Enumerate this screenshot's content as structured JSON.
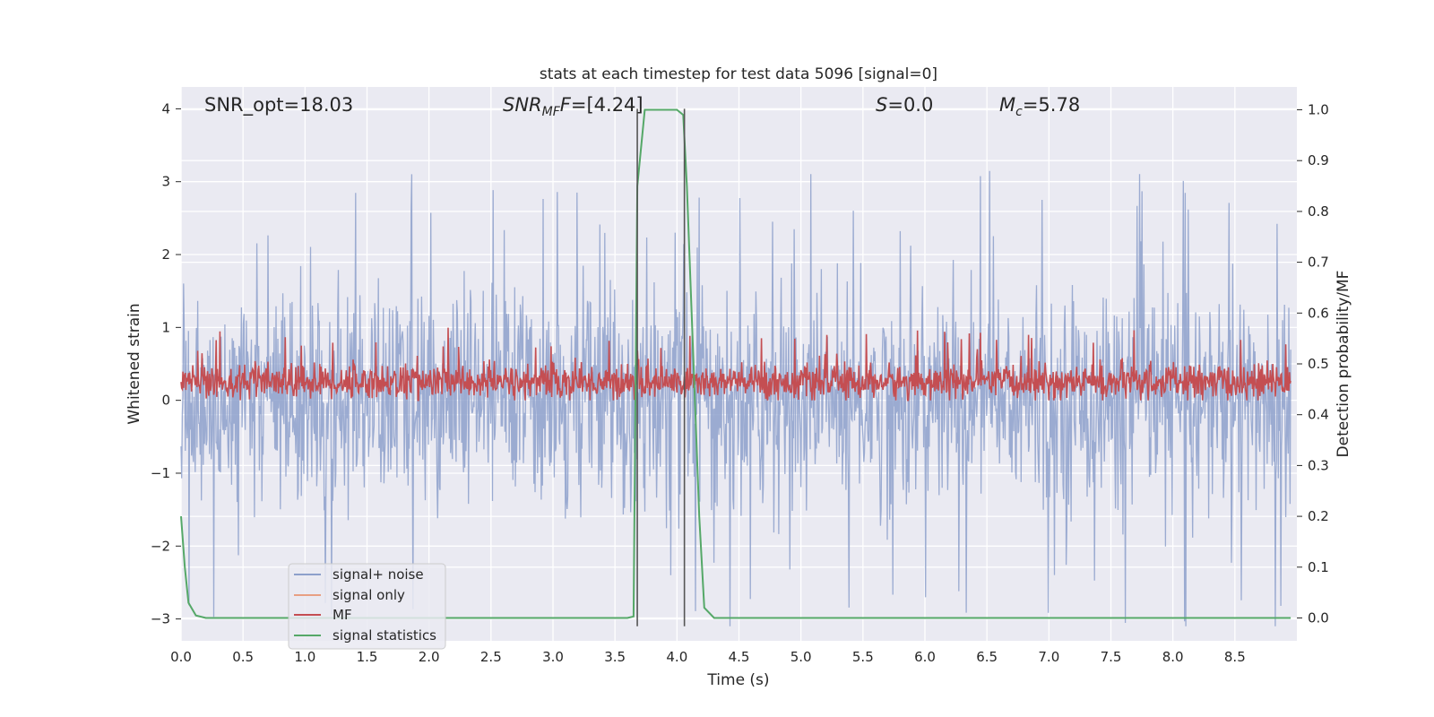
{
  "chart_data": {
    "type": "line",
    "title": "stats at each timestep for test data 5096 [signal=0]",
    "xlabel": "Time (s)",
    "ylabel": "Whitened strain",
    "y2label": "Detection probability/MF",
    "xlim": [
      0,
      9.0
    ],
    "ylim": [
      -3.3,
      4.3
    ],
    "y2lim": [
      -0.045,
      1.045
    ],
    "xticks": [
      "0.0",
      "0.5",
      "1.0",
      "1.5",
      "2.0",
      "2.5",
      "3.0",
      "3.5",
      "4.0",
      "4.5",
      "5.0",
      "5.5",
      "6.0",
      "6.5",
      "7.0",
      "7.5",
      "8.0",
      "8.5"
    ],
    "xtick_values": [
      0,
      0.5,
      1,
      1.5,
      2,
      2.5,
      3,
      3.5,
      4,
      4.5,
      5,
      5.5,
      6,
      6.5,
      7,
      7.5,
      8,
      8.5
    ],
    "yticks": [
      "−3",
      "−2",
      "−1",
      "0",
      "1",
      "2",
      "3",
      "4"
    ],
    "ytick_values": [
      -3,
      -2,
      -1,
      0,
      1,
      2,
      3,
      4
    ],
    "y2ticks": [
      "0.0",
      "0.1",
      "0.2",
      "0.3",
      "0.4",
      "0.5",
      "0.6",
      "0.7",
      "0.8",
      "0.9",
      "1.0"
    ],
    "y2tick_values": [
      0,
      0.1,
      0.2,
      0.3,
      0.4,
      0.5,
      0.6,
      0.7,
      0.8,
      0.9,
      1.0
    ],
    "grid": true,
    "annotations": {
      "snr_opt": "SNR_opt=18.03",
      "snr_mf_main": "SNR",
      "snr_mf_sub": "MF",
      "snr_mf_value": "=[4.24]",
      "s_var": "S",
      "s_value": "=0.0",
      "mc_var": "M",
      "mc_sub": "c",
      "mc_value": "=5.78"
    },
    "series": [
      {
        "name": "signal+ noise",
        "color": "#8da0cb",
        "description_values": "dense noise between about -3.1 and 4.0, mostly within -1.7 and 2.5"
      },
      {
        "name": "signal only",
        "color": "#e8a083",
        "values": []
      },
      {
        "name": "MF",
        "color": "#c44e52",
        "description_values": "dense trace between about 0.0 and 1.0 strain units, typically 0.1-0.5"
      },
      {
        "name": "signal statistics",
        "color": "#55a868",
        "x": [
          0,
          0.03,
          0.06,
          0.12,
          0.2,
          0.3,
          3.5,
          3.6,
          3.65,
          3.68,
          3.74,
          4.0,
          4.05,
          4.08,
          4.18,
          4.22,
          4.3,
          8.95
        ],
        "y": [
          0.2,
          0.1,
          0.03,
          0.005,
          0.0,
          0.0,
          0.0,
          0.0,
          0.003,
          0.85,
          1.0,
          1.0,
          0.99,
          0.85,
          0.2,
          0.02,
          0.0,
          0.0
        ]
      }
    ],
    "vlines": [
      3.68,
      4.06
    ],
    "legend": {
      "placement": "lower-left",
      "entries": [
        "signal+ noise",
        "signal only",
        "MF",
        "signal statistics"
      ]
    }
  }
}
